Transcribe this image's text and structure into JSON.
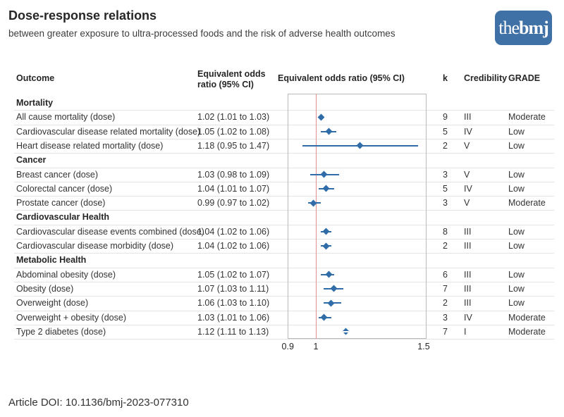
{
  "header": {
    "title": "Dose-response relations",
    "subtitle": "between greater exposure to ultra-processed foods and the risk of adverse health outcomes",
    "logo": {
      "the": "the",
      "bmj": "bmj",
      "bg_color": "#4071a6"
    }
  },
  "columns": {
    "outcome": "Outcome",
    "or_line1": "Equivalent odds",
    "or_line2": "ratio (95% CI)",
    "plot": "Equivalent odds ratio (95% CI)",
    "k": "k",
    "credibility": "Credibility",
    "grade": "GRADE"
  },
  "colors": {
    "marker_blue": "#2f6ca8",
    "reference_line_red": "#e09090",
    "logo_blue": "#4071a6"
  },
  "chart_data": {
    "type": "scatter",
    "subtype": "forest_plot",
    "title": "Dose-response relations",
    "subtitle": "between greater exposure to ultra-processed foods and the risk of adverse health outcomes",
    "xlabel": "Equivalent odds ratio (95% CI)",
    "x_scale": "log",
    "xlim": [
      0.9,
      1.52
    ],
    "x_ticks": [
      "0.9",
      "1",
      "1.5"
    ],
    "x_tick_values": [
      0.9,
      1,
      1.5
    ],
    "reference_line": 1,
    "grid": "row-separators",
    "legend": "none",
    "rows": [
      {
        "type": "section",
        "outcome": "Mortality"
      },
      {
        "type": "data",
        "outcome": "All cause mortality (dose)",
        "or_text": "1.02 (1.01 to 1.03)",
        "est": 1.02,
        "lo": 1.01,
        "hi": 1.03,
        "k": "9",
        "credibility": "III",
        "grade": "Moderate"
      },
      {
        "type": "data",
        "outcome": "Cardiovascular disease related mortality (dose)",
        "or_text": "1.05 (1.02 to 1.08)",
        "est": 1.05,
        "lo": 1.02,
        "hi": 1.08,
        "k": "5",
        "credibility": "IV",
        "grade": "Low"
      },
      {
        "type": "data",
        "outcome": "Heart disease related mortality (dose)",
        "or_text": "1.18 (0.95 to 1.47)",
        "est": 1.18,
        "lo": 0.95,
        "hi": 1.47,
        "k": "2",
        "credibility": "V",
        "grade": "Low"
      },
      {
        "type": "section",
        "outcome": "Cancer"
      },
      {
        "type": "data",
        "outcome": "Breast cancer (dose)",
        "or_text": "1.03 (0.98 to 1.09)",
        "est": 1.03,
        "lo": 0.98,
        "hi": 1.09,
        "k": "3",
        "credibility": "V",
        "grade": "Low"
      },
      {
        "type": "data",
        "outcome": "Colorectal cancer (dose)",
        "or_text": "1.04 (1.01 to 1.07)",
        "est": 1.04,
        "lo": 1.01,
        "hi": 1.07,
        "k": "5",
        "credibility": "IV",
        "grade": "Low"
      },
      {
        "type": "data",
        "outcome": "Prostate cancer (dose)",
        "or_text": "0.99 (0.97 to 1.02)",
        "est": 0.99,
        "lo": 0.97,
        "hi": 1.02,
        "k": "3",
        "credibility": "V",
        "grade": "Moderate"
      },
      {
        "type": "section",
        "outcome": "Cardiovascular Health"
      },
      {
        "type": "data",
        "outcome": "Cardiovascular disease events combined (dose)",
        "or_text": "1.04 (1.02 to 1.06)",
        "est": 1.04,
        "lo": 1.02,
        "hi": 1.06,
        "k": "8",
        "credibility": "III",
        "grade": "Low"
      },
      {
        "type": "data",
        "outcome": "Cardiovascular disease morbidity (dose)",
        "or_text": "1.04 (1.02 to 1.06)",
        "est": 1.04,
        "lo": 1.02,
        "hi": 1.06,
        "k": "2",
        "credibility": "III",
        "grade": "Low"
      },
      {
        "type": "section",
        "outcome": "Metabolic Health"
      },
      {
        "type": "data",
        "outcome": "Abdominal obesity (dose)",
        "or_text": "1.05 (1.02 to 1.07)",
        "est": 1.05,
        "lo": 1.02,
        "hi": 1.07,
        "k": "6",
        "credibility": "III",
        "grade": "Low"
      },
      {
        "type": "data",
        "outcome": "Obesity (dose)",
        "or_text": "1.07 (1.03 to 1.11)",
        "est": 1.07,
        "lo": 1.03,
        "hi": 1.11,
        "k": "7",
        "credibility": "III",
        "grade": "Low"
      },
      {
        "type": "data",
        "outcome": "Overweight (dose)",
        "or_text": "1.06 (1.03 to 1.10)",
        "est": 1.06,
        "lo": 1.03,
        "hi": 1.1,
        "k": "2",
        "credibility": "III",
        "grade": "Low"
      },
      {
        "type": "data",
        "outcome": "Overweight + obesity (dose)",
        "or_text": "1.03 (1.01 to 1.06)",
        "est": 1.03,
        "lo": 1.01,
        "hi": 1.06,
        "k": "3",
        "credibility": "IV",
        "grade": "Moderate"
      },
      {
        "type": "data",
        "outcome": "Type 2 diabetes (dose)",
        "or_text": "1.12 (1.11 to 1.13)",
        "est": 1.12,
        "lo": 1.11,
        "hi": 1.13,
        "k": "7",
        "credibility": "I",
        "grade": "Moderate",
        "marker_style": "split"
      }
    ]
  },
  "footer": {
    "doi": "Article DOI: 10.1136/bmj-2023-077310"
  }
}
